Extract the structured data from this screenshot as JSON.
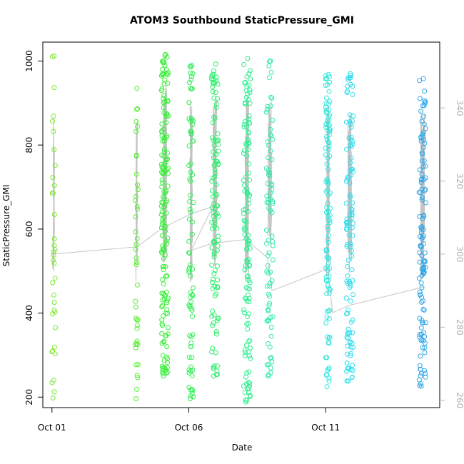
{
  "chart_data": {
    "type": "scatter",
    "title": "ATOM3 Southbound StaticPressure_GMI",
    "xlabel": "Date",
    "ylabel": "StaticPressure_GMI",
    "x_range": [
      "2017-09-30T16:00",
      "2017-10-15T04:00"
    ],
    "ylim": [
      175,
      1045
    ],
    "y2lim": [
      258,
      358
    ],
    "x_ticks": [
      {
        "date": "2017-10-01",
        "label": "Oct 01"
      },
      {
        "date": "2017-10-06",
        "label": "Oct 06"
      },
      {
        "date": "2017-10-11",
        "label": "Oct 11"
      }
    ],
    "y_ticks": [
      200,
      400,
      600,
      800,
      1000
    ],
    "y2_ticks": [
      260,
      280,
      300,
      320,
      340
    ],
    "line_color": "#c4c4c4",
    "right_axis_color": "#b3b3b3",
    "secondary_line": {
      "axis": "right",
      "points": [
        [
          "2017-10-01T00:00",
          300
        ],
        [
          "2017-10-04T03:00",
          302
        ],
        [
          "2017-10-05T00:00",
          307
        ],
        [
          "2017-10-06T02:00",
          311
        ],
        [
          "2017-10-06T21:00",
          313
        ],
        [
          "2017-10-06T02:00",
          301
        ],
        [
          "2017-10-06T21:00",
          303
        ],
        [
          "2017-10-08T02:00",
          304
        ],
        [
          "2017-10-08T21:00",
          299
        ],
        [
          "2017-10-09T01:00",
          290
        ],
        [
          "2017-10-11T02:00",
          296
        ],
        [
          "2017-10-11T06:00",
          284
        ],
        [
          "2017-10-11T21:00",
          286
        ],
        [
          "2017-10-14T14:00",
          291
        ]
      ]
    },
    "series": [
      {
        "date": "2017-10-01",
        "color": "#7fe82e",
        "x": [
          "2017-10-01T00:00",
          "2017-10-01T01:00",
          "2017-10-01T02:00",
          "2017-10-01T03:00"
        ],
        "y": [
          198,
          1012,
          600,
          300
        ],
        "n": 34
      },
      {
        "date": "2017-10-04",
        "color": "#55ee2e",
        "x": [
          "2017-10-04T01:00",
          "2017-10-04T03:00"
        ],
        "y": [
          196,
          935
        ],
        "n": 40
      },
      {
        "date": "2017-10-05",
        "color": "#34f034",
        "x": [
          "2017-10-05T00:00",
          "2017-10-05T06:00"
        ],
        "y": [
          250,
          1016
        ],
        "n": 160
      },
      {
        "date": "2017-10-06",
        "color": "#2fee55",
        "x": [
          "2017-10-06T00:00",
          "2017-10-06T04:00"
        ],
        "y": [
          196,
          990
        ],
        "n": 80
      },
      {
        "date": "2017-10-07",
        "color": "#2fee6e",
        "x": [
          "2017-10-06T20:00",
          "2017-10-07T02:00"
        ],
        "y": [
          250,
          993
        ],
        "n": 110
      },
      {
        "date": "2017-10-08",
        "color": "#2fee90",
        "x": [
          "2017-10-08T00:00",
          "2017-10-08T06:00"
        ],
        "y": [
          188,
          1006
        ],
        "n": 130
      },
      {
        "date": "2017-10-09",
        "color": "#2fe8ae",
        "x": [
          "2017-10-08T20:00",
          "2017-10-09T02:00"
        ],
        "y": [
          250,
          1000
        ],
        "n": 80
      },
      {
        "date": "2017-10-11",
        "color": "#2fe6dc",
        "x": [
          "2017-10-11T00:00",
          "2017-10-11T04:00"
        ],
        "y": [
          225,
          968
        ],
        "n": 110
      },
      {
        "date": "2017-10-12",
        "color": "#2fdcec",
        "x": [
          "2017-10-11T18:00",
          "2017-10-12T00:00"
        ],
        "y": [
          238,
          970
        ],
        "n": 110
      },
      {
        "date": "2017-10-14",
        "color": "#2fa6e8",
        "x": [
          "2017-10-14T10:00",
          "2017-10-14T16:00"
        ],
        "y": [
          226,
          958
        ],
        "n": 120
      }
    ]
  }
}
